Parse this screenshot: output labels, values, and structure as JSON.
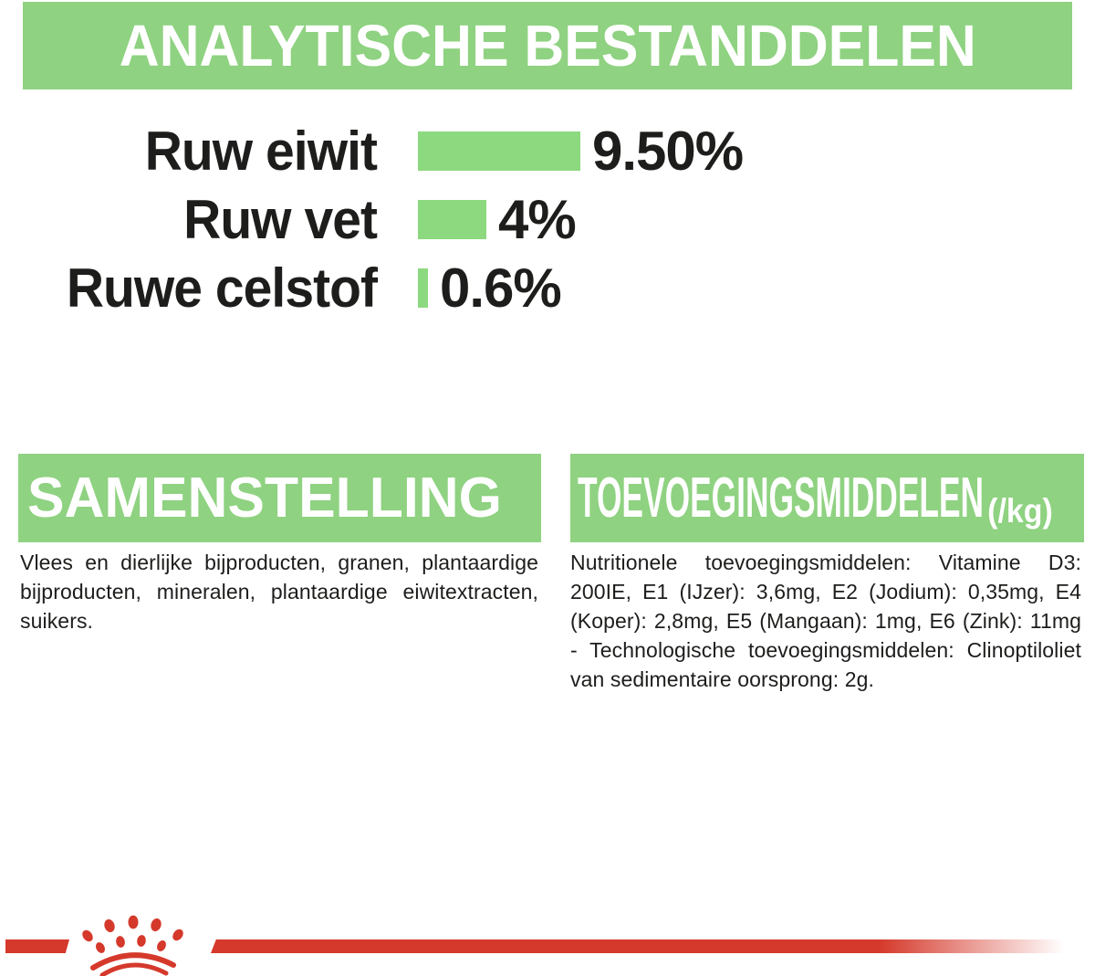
{
  "theme": {
    "banner_green": "#8FD281",
    "bar_green": "#8CD97F",
    "red": "#D5392B",
    "ink": "#1D1D1B",
    "banner_text": "#FFFFFF"
  },
  "header": {
    "title": "ANALYTISCHE BESTANDDELEN"
  },
  "chart_data": {
    "type": "bar",
    "orientation": "horizontal",
    "title": "ANALYTISCHE BESTANDDELEN",
    "categories": [
      "Ruw eiwit",
      "Ruw vet",
      "Ruwe celstof"
    ],
    "values": [
      9.5,
      4,
      0.6
    ],
    "value_labels": [
      "9.50%",
      "4%",
      "0.6%"
    ],
    "unit": "%",
    "xlim": [
      0,
      10
    ],
    "grid": false,
    "legend": false,
    "bar_color": "#8CD97F"
  },
  "sections": {
    "samenstelling": {
      "title": "SAMENSTELLING",
      "body": "Vlees en dierlijke bijproducten, granen, plantaardige bijproducten, mineralen, plantaardige eiwitextracten, suikers."
    },
    "toevoegingsmiddelen": {
      "title": "TOEVOEGINGSMIDDELEN",
      "title_suffix": "(/kg)",
      "body": "Nutritionele toevoegingsmiddelen: Vitamine D3: 200IE, E1 (IJzer): 3,6mg, E2 (Jodium): 0,35mg, E4 (Koper): 2,8mg, E5 (Mangaan): 1mg, E6 (Zink): 11mg - Technologische toevoegingsmiddelen: Clinoptiloliet van sedimentaire oorsprong: 2g."
    }
  },
  "footer": {
    "logo": "royal-canin-crown"
  }
}
